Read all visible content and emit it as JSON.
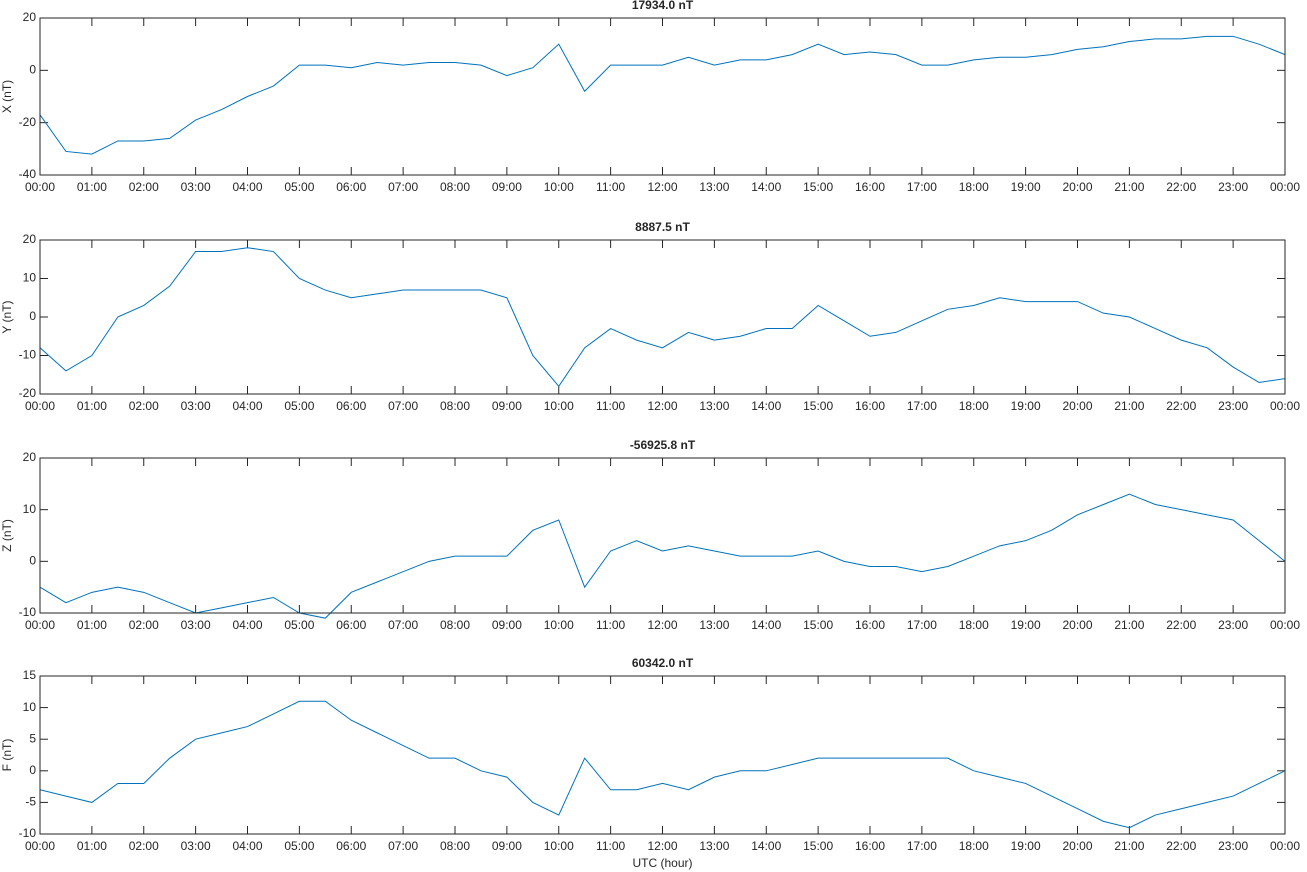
{
  "chart_data": [
    {
      "type": "line",
      "title": "17934.0 nT",
      "ylabel": "X (nT)",
      "color": "#0072bd",
      "x": [
        0,
        0.5,
        1,
        1.5,
        2,
        2.5,
        3,
        3.5,
        4,
        4.5,
        5,
        5.5,
        6,
        6.5,
        7,
        7.5,
        8,
        8.5,
        9,
        9.5,
        10,
        10.5,
        11,
        11.5,
        12,
        12.5,
        13,
        13.5,
        14,
        14.5,
        15,
        15.5,
        16,
        16.5,
        17,
        17.5,
        18,
        18.5,
        19,
        19.5,
        20,
        20.5,
        21,
        21.5,
        22,
        22.5,
        23,
        23.5,
        24
      ],
      "series": [
        {
          "name": "X",
          "color": "#0072bd",
          "values": [
            -17,
            -31,
            -32,
            -27,
            -27,
            -26,
            -19,
            -15,
            -10,
            -6,
            2,
            2,
            1,
            3,
            2,
            3,
            3,
            2,
            -2,
            1,
            10,
            -8,
            2,
            2,
            2,
            5,
            2,
            4,
            4,
            6,
            10,
            6,
            7,
            6,
            2,
            2,
            4,
            5,
            5,
            6,
            8,
            9,
            11,
            12,
            12,
            13,
            13,
            10,
            6
          ]
        }
      ],
      "xlim": [
        0,
        24
      ],
      "ylim": [
        -40,
        20
      ],
      "yticks": [
        -40,
        -20,
        0,
        20
      ],
      "xticks": [
        {
          "value": 0,
          "label": "00:00"
        },
        {
          "value": 1,
          "label": "01:00"
        },
        {
          "value": 2,
          "label": "02:00"
        },
        {
          "value": 3,
          "label": "03:00"
        },
        {
          "value": 4,
          "label": "04:00"
        },
        {
          "value": 5,
          "label": "05:00"
        },
        {
          "value": 6,
          "label": "06:00"
        },
        {
          "value": 7,
          "label": "07:00"
        },
        {
          "value": 8,
          "label": "08:00"
        },
        {
          "value": 9,
          "label": "09:00"
        },
        {
          "value": 10,
          "label": "10:00"
        },
        {
          "value": 11,
          "label": "11:00"
        },
        {
          "value": 12,
          "label": "12:00"
        },
        {
          "value": 13,
          "label": "13:00"
        },
        {
          "value": 14,
          "label": "14:00"
        },
        {
          "value": 15,
          "label": "15:00"
        },
        {
          "value": 16,
          "label": "16:00"
        },
        {
          "value": 17,
          "label": "17:00"
        },
        {
          "value": 18,
          "label": "18:00"
        },
        {
          "value": 19,
          "label": "19:00"
        },
        {
          "value": 20,
          "label": "20:00"
        },
        {
          "value": 21,
          "label": "21:00"
        },
        {
          "value": 22,
          "label": "22:00"
        },
        {
          "value": 23,
          "label": "23:00"
        },
        {
          "value": 24,
          "label": "00:00"
        }
      ]
    },
    {
      "type": "line",
      "title": "8887.5 nT",
      "ylabel": "Y (nT)",
      "color": "#0072bd",
      "x": [
        0,
        0.5,
        1,
        1.5,
        2,
        2.5,
        3,
        3.5,
        4,
        4.5,
        5,
        5.5,
        6,
        6.5,
        7,
        7.5,
        8,
        8.5,
        9,
        9.5,
        10,
        10.5,
        11,
        11.5,
        12,
        12.5,
        13,
        13.5,
        14,
        14.5,
        15,
        15.5,
        16,
        16.5,
        17,
        17.5,
        18,
        18.5,
        19,
        19.5,
        20,
        20.5,
        21,
        21.5,
        22,
        22.5,
        23,
        23.5,
        24
      ],
      "series": [
        {
          "name": "Y",
          "color": "#0072bd",
          "values": [
            -8,
            -14,
            -10,
            0,
            3,
            8,
            17,
            17,
            18,
            17,
            10,
            7,
            5,
            6,
            7,
            7,
            7,
            7,
            5,
            -10,
            -18,
            -8,
            -3,
            -6,
            -8,
            -4,
            -6,
            -5,
            -3,
            -3,
            3,
            -1,
            -5,
            -4,
            -1,
            2,
            3,
            5,
            4,
            4,
            4,
            1,
            0,
            -3,
            -6,
            -8,
            -13,
            -17,
            -16
          ]
        }
      ],
      "xlim": [
        0,
        24
      ],
      "ylim": [
        -20,
        20
      ],
      "yticks": [
        -20,
        -10,
        0,
        10,
        20
      ],
      "xticks": [
        {
          "value": 0,
          "label": "00:00"
        },
        {
          "value": 1,
          "label": "01:00"
        },
        {
          "value": 2,
          "label": "02:00"
        },
        {
          "value": 3,
          "label": "03:00"
        },
        {
          "value": 4,
          "label": "04:00"
        },
        {
          "value": 5,
          "label": "05:00"
        },
        {
          "value": 6,
          "label": "06:00"
        },
        {
          "value": 7,
          "label": "07:00"
        },
        {
          "value": 8,
          "label": "08:00"
        },
        {
          "value": 9,
          "label": "09:00"
        },
        {
          "value": 10,
          "label": "10:00"
        },
        {
          "value": 11,
          "label": "11:00"
        },
        {
          "value": 12,
          "label": "12:00"
        },
        {
          "value": 13,
          "label": "13:00"
        },
        {
          "value": 14,
          "label": "14:00"
        },
        {
          "value": 15,
          "label": "15:00"
        },
        {
          "value": 16,
          "label": "16:00"
        },
        {
          "value": 17,
          "label": "17:00"
        },
        {
          "value": 18,
          "label": "18:00"
        },
        {
          "value": 19,
          "label": "19:00"
        },
        {
          "value": 20,
          "label": "20:00"
        },
        {
          "value": 21,
          "label": "21:00"
        },
        {
          "value": 22,
          "label": "22:00"
        },
        {
          "value": 23,
          "label": "23:00"
        },
        {
          "value": 24,
          "label": "00:00"
        }
      ]
    },
    {
      "type": "line",
      "title": "-56925.8 nT",
      "ylabel": "Z (nT)",
      "color": "#0072bd",
      "x": [
        0,
        0.5,
        1,
        1.5,
        2,
        2.5,
        3,
        3.5,
        4,
        4.5,
        5,
        5.5,
        6,
        6.5,
        7,
        7.5,
        8,
        8.5,
        9,
        9.5,
        10,
        10.5,
        11,
        11.5,
        12,
        12.5,
        13,
        13.5,
        14,
        14.5,
        15,
        15.5,
        16,
        16.5,
        17,
        17.5,
        18,
        18.5,
        19,
        19.5,
        20,
        20.5,
        21,
        21.5,
        22,
        22.5,
        23,
        23.5,
        24
      ],
      "series": [
        {
          "name": "Z",
          "color": "#0072bd",
          "values": [
            -5,
            -8,
            -6,
            -5,
            -6,
            -8,
            -10,
            -9,
            -8,
            -7,
            -10,
            -11,
            -6,
            -4,
            -2,
            0,
            1,
            1,
            1,
            6,
            8,
            -5,
            2,
            4,
            2,
            3,
            2,
            1,
            1,
            1,
            2,
            0,
            -1,
            -1,
            -2,
            -1,
            1,
            3,
            4,
            6,
            9,
            11,
            13,
            11,
            10,
            9,
            8,
            4,
            0
          ]
        }
      ],
      "xlim": [
        0,
        24
      ],
      "ylim": [
        -10,
        20
      ],
      "yticks": [
        -10,
        0,
        10,
        20
      ],
      "xticks": [
        {
          "value": 0,
          "label": "00:00"
        },
        {
          "value": 1,
          "label": "01:00"
        },
        {
          "value": 2,
          "label": "02:00"
        },
        {
          "value": 3,
          "label": "03:00"
        },
        {
          "value": 4,
          "label": "04:00"
        },
        {
          "value": 5,
          "label": "05:00"
        },
        {
          "value": 6,
          "label": "06:00"
        },
        {
          "value": 7,
          "label": "07:00"
        },
        {
          "value": 8,
          "label": "08:00"
        },
        {
          "value": 9,
          "label": "09:00"
        },
        {
          "value": 10,
          "label": "10:00"
        },
        {
          "value": 11,
          "label": "11:00"
        },
        {
          "value": 12,
          "label": "12:00"
        },
        {
          "value": 13,
          "label": "13:00"
        },
        {
          "value": 14,
          "label": "14:00"
        },
        {
          "value": 15,
          "label": "15:00"
        },
        {
          "value": 16,
          "label": "16:00"
        },
        {
          "value": 17,
          "label": "17:00"
        },
        {
          "value": 18,
          "label": "18:00"
        },
        {
          "value": 19,
          "label": "19:00"
        },
        {
          "value": 20,
          "label": "20:00"
        },
        {
          "value": 21,
          "label": "21:00"
        },
        {
          "value": 22,
          "label": "22:00"
        },
        {
          "value": 23,
          "label": "23:00"
        },
        {
          "value": 24,
          "label": "00:00"
        }
      ]
    },
    {
      "type": "line",
      "title": "60342.0 nT",
      "ylabel": "F (nT)",
      "xlabel": "UTC (hour)",
      "color": "#0072bd",
      "x": [
        0,
        0.5,
        1,
        1.5,
        2,
        2.5,
        3,
        3.5,
        4,
        4.5,
        5,
        5.5,
        6,
        6.5,
        7,
        7.5,
        8,
        8.5,
        9,
        9.5,
        10,
        10.5,
        11,
        11.5,
        12,
        12.5,
        13,
        13.5,
        14,
        14.5,
        15,
        15.5,
        16,
        16.5,
        17,
        17.5,
        18,
        18.5,
        19,
        19.5,
        20,
        20.5,
        21,
        21.5,
        22,
        22.5,
        23,
        23.5,
        24
      ],
      "series": [
        {
          "name": "F",
          "color": "#0072bd",
          "values": [
            -3,
            -4,
            -5,
            -2,
            -2,
            2,
            5,
            6,
            7,
            9,
            11,
            11,
            8,
            6,
            4,
            2,
            2,
            0,
            -1,
            -5,
            -7,
            2,
            -3,
            -3,
            -2,
            -3,
            -1,
            0,
            0,
            1,
            2,
            2,
            2,
            2,
            2,
            2,
            0,
            -1,
            -2,
            -4,
            -6,
            -8,
            -9,
            -7,
            -6,
            -5,
            -4,
            -2,
            0
          ]
        }
      ],
      "xlim": [
        0,
        24
      ],
      "ylim": [
        -10,
        15
      ],
      "yticks": [
        -10,
        -5,
        0,
        5,
        10,
        15
      ],
      "xticks": [
        {
          "value": 0,
          "label": "00:00"
        },
        {
          "value": 1,
          "label": "01:00"
        },
        {
          "value": 2,
          "label": "02:00"
        },
        {
          "value": 3,
          "label": "03:00"
        },
        {
          "value": 4,
          "label": "04:00"
        },
        {
          "value": 5,
          "label": "05:00"
        },
        {
          "value": 6,
          "label": "06:00"
        },
        {
          "value": 7,
          "label": "07:00"
        },
        {
          "value": 8,
          "label": "08:00"
        },
        {
          "value": 9,
          "label": "09:00"
        },
        {
          "value": 10,
          "label": "10:00"
        },
        {
          "value": 11,
          "label": "11:00"
        },
        {
          "value": 12,
          "label": "12:00"
        },
        {
          "value": 13,
          "label": "13:00"
        },
        {
          "value": 14,
          "label": "14:00"
        },
        {
          "value": 15,
          "label": "15:00"
        },
        {
          "value": 16,
          "label": "16:00"
        },
        {
          "value": 17,
          "label": "17:00"
        },
        {
          "value": 18,
          "label": "18:00"
        },
        {
          "value": 19,
          "label": "19:00"
        },
        {
          "value": 20,
          "label": "20:00"
        },
        {
          "value": 21,
          "label": "21:00"
        },
        {
          "value": 22,
          "label": "22:00"
        },
        {
          "value": 23,
          "label": "23:00"
        },
        {
          "value": 24,
          "label": "00:00"
        }
      ]
    }
  ]
}
